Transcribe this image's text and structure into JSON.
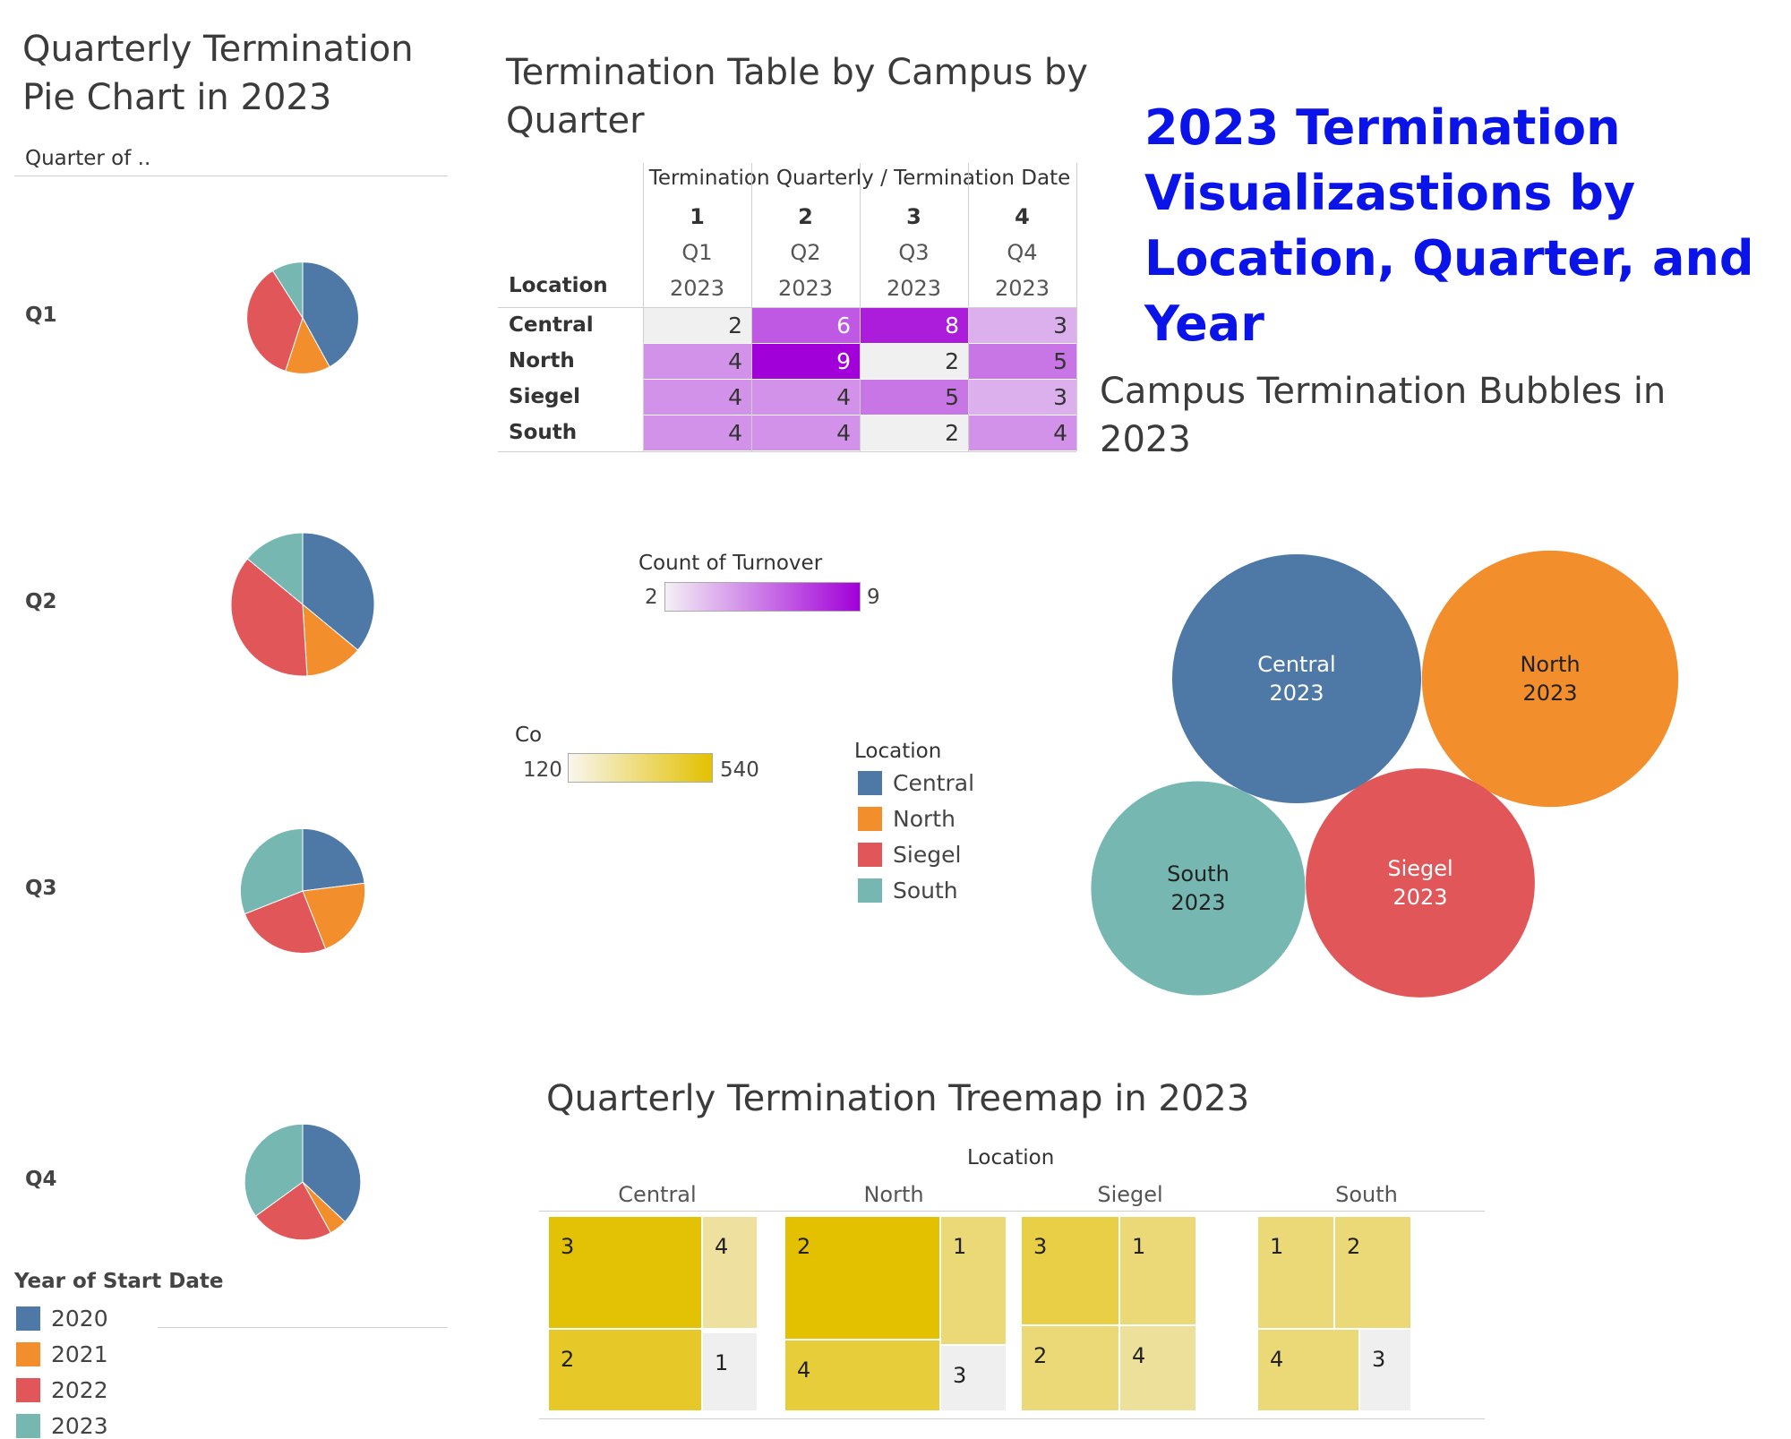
{
  "main_title": "2023 Termination Visualizastions by Location, Quarter, and Year",
  "pie": {
    "title_l1": "Quarterly Termination",
    "title_l2": "Pie Chart in 2023",
    "column_header": "Quarter of ..",
    "legend_title": "Year of Start Date"
  },
  "table": {
    "title_l1": "Termination Table by Campus by",
    "title_l2": "Quarter",
    "header": "Termination Quarterly / Termination Date",
    "row_header": "Location"
  },
  "bubble": {
    "title_l1": "Campus Termination Bubbles in",
    "title_l2": "2023"
  },
  "treemap": {
    "title": "Quarterly Termination Treemap in 2023",
    "header": "Location"
  },
  "turnover_legend": {
    "title": "Count of Turnover",
    "min": "2",
    "max": "9"
  },
  "co_legend": {
    "title": "Co",
    "min": "120",
    "max": "540"
  },
  "location_legend": {
    "title": "Location",
    "items": [
      {
        "label": "Central",
        "color": "#4e79a7"
      },
      {
        "label": "North",
        "color": "#f28e2b"
      },
      {
        "label": "Siegel",
        "color": "#e15759"
      },
      {
        "label": "South",
        "color": "#76b7b2"
      }
    ]
  },
  "chart_data": [
    {
      "type": "pie",
      "title": "Quarterly Termination Pie Chart in 2023",
      "categories": [
        "Q1",
        "Q2",
        "Q3",
        "Q4"
      ],
      "legend": [
        {
          "label": "2020",
          "color": "#4e79a7"
        },
        {
          "label": "2021",
          "color": "#f28e2b"
        },
        {
          "label": "2022",
          "color": "#e15759"
        },
        {
          "label": "2023",
          "color": "#76b7b2"
        }
      ],
      "pies": [
        {
          "quarter": "Q1",
          "size": 0.78,
          "values": [
            42,
            13,
            36,
            9
          ]
        },
        {
          "quarter": "Q2",
          "size": 1.0,
          "values": [
            36,
            13,
            37,
            14
          ]
        },
        {
          "quarter": "Q3",
          "size": 0.87,
          "values": [
            23,
            21,
            25,
            31
          ]
        },
        {
          "quarter": "Q4",
          "size": 0.81,
          "values": [
            37,
            5,
            23,
            35
          ]
        }
      ]
    },
    {
      "type": "table",
      "title": "Termination Table by Campus by Quarter",
      "columns": [
        {
          "num": "1",
          "q": "Q1",
          "year": "2023"
        },
        {
          "num": "2",
          "q": "Q2",
          "year": "2023"
        },
        {
          "num": "3",
          "q": "Q3",
          "year": "2023"
        },
        {
          "num": "4",
          "q": "Q4",
          "year": "2023"
        }
      ],
      "rows": [
        {
          "location": "Central",
          "values": [
            2,
            6,
            8,
            3
          ]
        },
        {
          "location": "North",
          "values": [
            4,
            9,
            2,
            5
          ]
        },
        {
          "location": "Siegel",
          "values": [
            4,
            4,
            5,
            3
          ]
        },
        {
          "location": "South",
          "values": [
            4,
            4,
            2,
            4
          ]
        }
      ],
      "color_range": [
        2,
        9
      ]
    },
    {
      "type": "scatter",
      "title": "Campus Termination Bubbles in 2023",
      "bubbles": [
        {
          "location": "Central",
          "year": "2023",
          "size": 1.0,
          "color": "#4e79a7"
        },
        {
          "location": "North",
          "year": "2023",
          "size": 1.03,
          "color": "#f28e2b"
        },
        {
          "location": "South",
          "year": "2023",
          "size": 0.86,
          "color": "#76b7b2"
        },
        {
          "location": "Siegel",
          "year": "2023",
          "size": 0.92,
          "color": "#e15759"
        }
      ]
    },
    {
      "type": "heatmap",
      "title": "Quarterly Termination Treemap in 2023",
      "panels": [
        {
          "location": "Central",
          "cells": [
            {
              "label": "3",
              "value": 528
            },
            {
              "label": "4",
              "value": 220
            },
            {
              "label": "2",
              "value": 460
            },
            {
              "label": "1",
              "value": 130
            }
          ]
        },
        {
          "location": "North",
          "cells": [
            {
              "label": "2",
              "value": 540
            },
            {
              "label": "1",
              "value": 300
            },
            {
              "label": "4",
              "value": 425
            },
            {
              "label": "3",
              "value": 125
            }
          ]
        },
        {
          "location": "Siegel",
          "cells": [
            {
              "label": "3",
              "value": 400
            },
            {
              "label": "1",
              "value": 300
            },
            {
              "label": "2",
              "value": 300
            },
            {
              "label": "4",
              "value": 230
            }
          ]
        },
        {
          "location": "South",
          "cells": [
            {
              "label": "1",
              "value": 300
            },
            {
              "label": "2",
              "value": 300
            },
            {
              "label": "4",
              "value": 300
            },
            {
              "label": "3",
              "value": 125
            }
          ]
        }
      ],
      "color_range": [
        120,
        540
      ]
    }
  ]
}
